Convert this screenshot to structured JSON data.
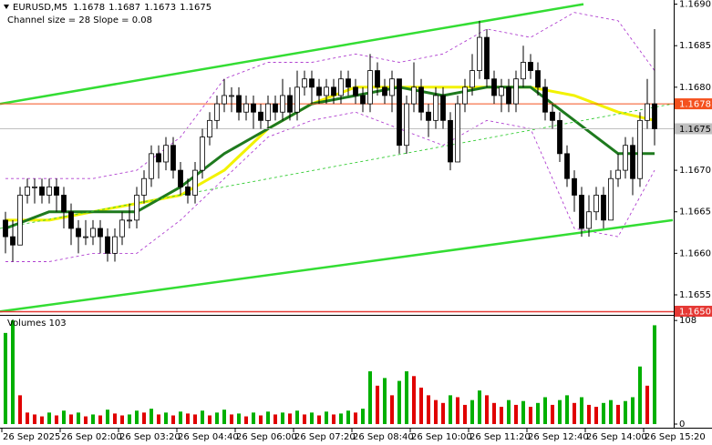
{
  "chart_data": [
    {
      "type": "candlestick",
      "title": "EURUSD,M5",
      "subtitle": "Channel size = 28 Slope = 0.08",
      "categories": [
        "26 Sep 2025",
        null,
        null,
        null,
        null,
        null,
        null,
        null,
        "26 Sep 02:00",
        null,
        null,
        null,
        null,
        null,
        null,
        null,
        "26 Sep 03:20",
        null,
        null,
        null,
        null,
        null,
        null,
        null,
        "26 Sep 04:40",
        null,
        null,
        null,
        null,
        null,
        null,
        null,
        "26 Sep 06:00",
        null,
        null,
        null,
        null,
        null,
        null,
        null,
        "26 Sep 07:20",
        null,
        null,
        null,
        null,
        null,
        null,
        null,
        "26 Sep 08:40",
        null,
        null,
        null,
        null,
        null,
        null,
        null,
        "26 Sep 10:00",
        null,
        null,
        null,
        null,
        null,
        null,
        null,
        "26 Sep 11:20",
        null,
        null,
        null,
        null,
        null,
        null,
        null,
        "26 Sep 12:40",
        null,
        null,
        null,
        null,
        null,
        null,
        null,
        "26 Sep 14:00",
        null,
        null,
        null,
        null,
        null,
        null,
        null,
        "26 Sep 15:20",
        null
      ],
      "open": [
        1.1664,
        1.1662,
        1.1661,
        1.1667,
        1.1668,
        1.1668,
        1.1667,
        1.1668,
        1.1667,
        1.1665,
        1.1663,
        1.1662,
        1.1662,
        1.1663,
        1.1662,
        1.166,
        1.1662,
        1.1664,
        1.1664,
        1.1667,
        1.1669,
        1.1672,
        1.1671,
        1.1673,
        1.167,
        1.1668,
        1.1667,
        1.167,
        1.1674,
        1.1676,
        1.1678,
        1.1679,
        1.1679,
        1.1677,
        1.1678,
        1.1677,
        1.1676,
        1.1678,
        1.1677,
        1.1679,
        1.1677,
        1.168,
        1.1681,
        1.168,
        1.1679,
        1.168,
        1.1679,
        1.1681,
        1.168,
        1.1679,
        1.1678,
        1.1682,
        1.168,
        1.1679,
        1.1681,
        1.1673,
        1.1678,
        1.168,
        1.1677,
        1.1676,
        1.1679,
        1.1676,
        1.1671,
        1.1678,
        1.168,
        1.1682,
        1.1686,
        1.1681,
        1.1679,
        1.168,
        1.1678,
        1.1681,
        1.1683,
        1.1682,
        1.168,
        1.1677,
        1.1676,
        1.1672,
        1.1669,
        1.1667,
        1.1663,
        1.1665,
        1.1667,
        1.1664,
        1.1669,
        1.167,
        1.1673,
        1.1669,
        1.1676,
        1.1678
      ],
      "high": [
        1.1665,
        1.1664,
        1.1668,
        1.1669,
        1.1669,
        1.1669,
        1.1669,
        1.1669,
        1.1668,
        1.1666,
        1.1664,
        1.1664,
        1.1664,
        1.1664,
        1.1663,
        1.1663,
        1.1665,
        1.1666,
        1.1668,
        1.167,
        1.1673,
        1.1673,
        1.1674,
        1.1674,
        1.1671,
        1.1669,
        1.1671,
        1.1675,
        1.1677,
        1.1679,
        1.1681,
        1.168,
        1.168,
        1.1679,
        1.1679,
        1.1678,
        1.1679,
        1.1679,
        1.1681,
        1.168,
        1.1682,
        1.1682,
        1.1682,
        1.1681,
        1.1681,
        1.1681,
        1.1682,
        1.1682,
        1.1681,
        1.168,
        1.1684,
        1.1683,
        1.1681,
        1.1682,
        1.1681,
        1.1679,
        1.1683,
        1.1681,
        1.1678,
        1.168,
        1.168,
        1.1677,
        1.1679,
        1.1681,
        1.1684,
        1.1688,
        1.1687,
        1.1682,
        1.1681,
        1.1681,
        1.1682,
        1.1685,
        1.1684,
        1.1683,
        1.1681,
        1.1678,
        1.1677,
        1.1673,
        1.167,
        1.1668,
        1.1667,
        1.1668,
        1.1668,
        1.167,
        1.1672,
        1.1674,
        1.1674,
        1.1677,
        1.1681,
        1.1687
      ],
      "low": [
        1.166,
        1.1659,
        1.1661,
        1.1666,
        1.1666,
        1.1666,
        1.1666,
        1.1665,
        1.1663,
        1.1661,
        1.166,
        1.1661,
        1.1661,
        1.166,
        1.1659,
        1.1659,
        1.1661,
        1.1663,
        1.1663,
        1.1666,
        1.1668,
        1.1669,
        1.167,
        1.1669,
        1.1667,
        1.1666,
        1.1666,
        1.1669,
        1.1673,
        1.1675,
        1.1677,
        1.1677,
        1.1676,
        1.1676,
        1.1675,
        1.1675,
        1.1675,
        1.1676,
        1.1676,
        1.1676,
        1.1676,
        1.1679,
        1.1678,
        1.1678,
        1.1678,
        1.1678,
        1.1678,
        1.1679,
        1.1678,
        1.1677,
        1.1677,
        1.1679,
        1.1678,
        1.1677,
        1.1672,
        1.1672,
        1.1677,
        1.1676,
        1.1674,
        1.1675,
        1.1675,
        1.167,
        1.1671,
        1.1677,
        1.1679,
        1.1681,
        1.168,
        1.1678,
        1.1677,
        1.1677,
        1.1677,
        1.168,
        1.1681,
        1.1679,
        1.1676,
        1.1675,
        1.1671,
        1.1668,
        1.1665,
        1.1662,
        1.1662,
        1.1664,
        1.1663,
        1.1664,
        1.1668,
        1.1669,
        1.1667,
        1.1668,
        1.1675,
        1.1673
      ],
      "close": [
        1.1662,
        1.1661,
        1.1667,
        1.1668,
        1.1668,
        1.1667,
        1.1668,
        1.1667,
        1.1665,
        1.1663,
        1.1662,
        1.1662,
        1.1663,
        1.1662,
        1.166,
        1.1662,
        1.1664,
        1.1664,
        1.1667,
        1.1669,
        1.1672,
        1.1671,
        1.1673,
        1.167,
        1.1668,
        1.1667,
        1.167,
        1.1674,
        1.1676,
        1.1678,
        1.1679,
        1.1679,
        1.1677,
        1.1678,
        1.1677,
        1.1676,
        1.1678,
        1.1677,
        1.1679,
        1.1677,
        1.168,
        1.1681,
        1.168,
        1.1679,
        1.168,
        1.1679,
        1.1681,
        1.168,
        1.1679,
        1.1678,
        1.1682,
        1.168,
        1.1679,
        1.1681,
        1.1673,
        1.1678,
        1.168,
        1.1677,
        1.1676,
        1.1679,
        1.1676,
        1.1671,
        1.1678,
        1.168,
        1.1682,
        1.1686,
        1.1681,
        1.1679,
        1.168,
        1.1678,
        1.1681,
        1.1683,
        1.1682,
        1.168,
        1.1677,
        1.1676,
        1.1672,
        1.1669,
        1.1667,
        1.1663,
        1.1665,
        1.1667,
        1.1664,
        1.1669,
        1.167,
        1.1673,
        1.1669,
        1.1676,
        1.1678,
        1.1675
      ],
      "up_color": "#ffffff",
      "down_color": "#000000",
      "ylim": [
        1.16527,
        1.16905
      ],
      "yticks": [
        {
          "value": 1.169,
          "label": "1.1690"
        },
        1.1685,
        {
          "value": 1.168,
          "label": "1.1680"
        },
        {
          "value": 1.167,
          "label": "1.1670"
        },
        1.1665,
        {
          "value": 1.166,
          "label": "1.1660"
        },
        1.1655
      ],
      "lines": [
        {
          "style": "band",
          "color": "#b040d0",
          "x": [
            0,
            6,
            12,
            18,
            24,
            30,
            36,
            42,
            48,
            54,
            60,
            66,
            72,
            78,
            84,
            89
          ],
          "values": [
            1.1669,
            1.1669,
            1.1669,
            1.167,
            1.1674,
            1.1681,
            1.1683,
            1.1683,
            1.1684,
            1.1683,
            1.1684,
            1.1687,
            1.1686,
            1.1689,
            1.1688,
            1.1682
          ]
        },
        {
          "style": "band",
          "color": "#b040d0",
          "x": [
            0,
            6,
            12,
            18,
            24,
            30,
            36,
            42,
            48,
            54,
            60,
            66,
            72,
            78,
            84,
            89
          ],
          "values": [
            1.1659,
            1.1659,
            1.166,
            1.166,
            1.1664,
            1.1669,
            1.1674,
            1.1676,
            1.1677,
            1.1675,
            1.1673,
            1.1676,
            1.1675,
            1.1663,
            1.1662,
            1.167
          ]
        },
        {
          "style": "ma",
          "color": "#f2f200",
          "x": [
            0,
            6,
            12,
            18,
            24,
            30,
            36,
            42,
            48,
            54,
            60,
            66,
            72,
            78,
            84,
            89
          ],
          "values": [
            1.1664,
            1.1664,
            1.1665,
            1.1666,
            1.1667,
            1.167,
            1.1675,
            1.1678,
            1.168,
            1.168,
            1.168,
            1.168,
            1.168,
            1.1679,
            1.1677,
            1.1676
          ]
        },
        {
          "style": "ma",
          "color": "#1e7a1e",
          "x": [
            0,
            6,
            12,
            18,
            24,
            30,
            36,
            42,
            48,
            54,
            60,
            66,
            72,
            78,
            84,
            89
          ],
          "values": [
            1.1663,
            1.1665,
            1.1665,
            1.1665,
            1.1668,
            1.1672,
            1.1675,
            1.1678,
            1.1679,
            1.168,
            1.1679,
            1.168,
            1.168,
            1.1676,
            1.1672,
            1.1672
          ]
        },
        {
          "style": "channel",
          "color": "#33dd33",
          "x": [
            -0.75,
            79.25
          ],
          "values": [
            1.1678,
            1.169
          ]
        },
        {
          "style": "channel",
          "color": "#33dd33",
          "x": [
            -0.75,
            91.5
          ],
          "values": [
            1.1653,
            1.1664
          ]
        },
        {
          "style": "mid",
          "color": "#33cc33",
          "x": [
            -0.75,
            91.5
          ],
          "values": [
            1.1663,
            1.1678
          ]
        }
      ],
      "hlines": [
        {
          "value": 1.1678,
          "color": "#f4511e"
        },
        {
          "value": 1.1675,
          "color": "#c0c0c0"
        }
      ],
      "bottom_label": "1.1650"
    },
    {
      "type": "bar",
      "title": "Volumes 103",
      "values": [
        95,
        108,
        30,
        12,
        10,
        8,
        12,
        9,
        14,
        10,
        12,
        8,
        10,
        9,
        15,
        11,
        9,
        10,
        14,
        12,
        16,
        10,
        12,
        9,
        13,
        11,
        10,
        14,
        9,
        12,
        15,
        10,
        11,
        8,
        12,
        9,
        13,
        10,
        12,
        11,
        14,
        10,
        12,
        9,
        13,
        10,
        11,
        14,
        12,
        16,
        55,
        40,
        48,
        30,
        45,
        55,
        50,
        38,
        30,
        25,
        22,
        30,
        28,
        20,
        25,
        35,
        30,
        22,
        18,
        25,
        20,
        24,
        18,
        22,
        28,
        20,
        25,
        30,
        22,
        28,
        20,
        18,
        22,
        25,
        20,
        24,
        28,
        60,
        40,
        103
      ],
      "up_color": "#00b000",
      "down_color": "#e00000",
      "ylim": [
        0,
        111
      ],
      "yticks": [
        0,
        108
      ]
    }
  ]
}
